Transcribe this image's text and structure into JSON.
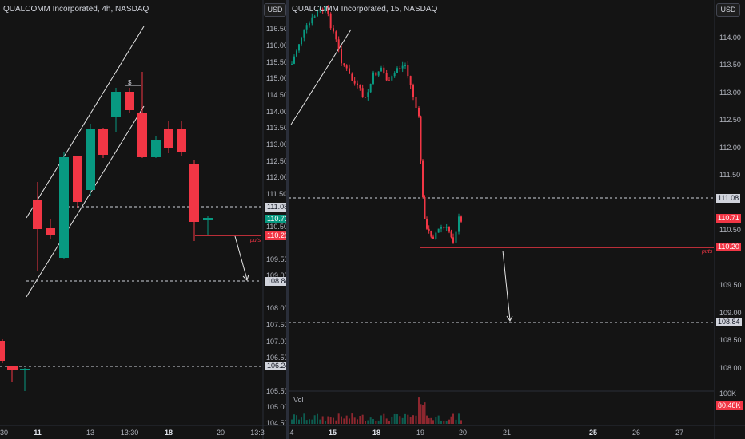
{
  "left_chart": {
    "title": "QUALCOMM Incorporated, 4h, NASDAQ",
    "currency": "USD",
    "y_ticks": [
      "116.50",
      "116.00",
      "115.50",
      "115.00",
      "114.50",
      "114.00",
      "113.50",
      "113.00",
      "112.50",
      "112.00",
      "111.50",
      "111.00",
      "110.50",
      "110.00",
      "109.50",
      "109.00",
      "108.50",
      "108.00",
      "107.50",
      "107.00",
      "106.50",
      "106.00",
      "105.50",
      "105.00",
      "104.50"
    ],
    "x_ticks": [
      {
        "label": "30",
        "bold": false
      },
      {
        "label": "11",
        "bold": true
      },
      {
        "label": "13",
        "bold": false
      },
      {
        "label": "13:30",
        "bold": false
      },
      {
        "label": "18",
        "bold": true
      },
      {
        "label": "20",
        "bold": false
      },
      {
        "label": "13:3",
        "bold": false
      }
    ],
    "price_labels": {
      "p1": "111.08",
      "p2": "110.71",
      "p3": "110.20",
      "p4": "108.84",
      "p5": "106.24"
    },
    "puts_label": "puts",
    "dollar_marker": "$"
  },
  "right_chart": {
    "title": "QUALCOMM Incorporated, 15, NASDAQ",
    "currency": "USD",
    "y_ticks": [
      "114.00",
      "113.50",
      "113.00",
      "112.50",
      "112.00",
      "111.50",
      "110.50",
      "109.50",
      "109.00",
      "108.50",
      "108.00"
    ],
    "x_ticks": [
      {
        "label": "4",
        "bold": false
      },
      {
        "label": "15",
        "bold": true
      },
      {
        "label": "18",
        "bold": true
      },
      {
        "label": "19",
        "bold": false
      },
      {
        "label": "20",
        "bold": false
      },
      {
        "label": "21",
        "bold": false
      },
      {
        "label": "25",
        "bold": true
      },
      {
        "label": "26",
        "bold": false
      },
      {
        "label": "27",
        "bold": false
      }
    ],
    "price_labels": {
      "p1": "111.08",
      "p2": "110.71",
      "p3": "110.20",
      "p4": "108.84"
    },
    "puts_label": "puts",
    "volume_label": "Vol",
    "volume_scale": "100K",
    "volume_value": "80.48K"
  },
  "colors": {
    "up": "#089981",
    "down": "#f23645",
    "background": "#141414",
    "grid": "#2a2e39"
  }
}
